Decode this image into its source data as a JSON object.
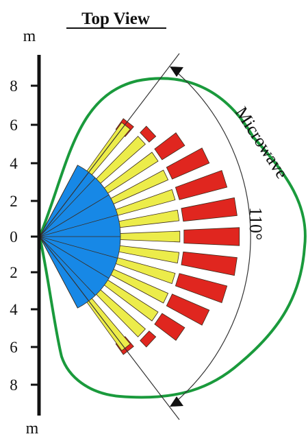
{
  "title": "Top View",
  "axis": {
    "unit_top": "m",
    "unit_bottom": "m",
    "ticks": [
      "8",
      "6",
      "4",
      "2",
      "0",
      "2",
      "4",
      "6",
      "8"
    ]
  },
  "labels": {
    "microwave": "Microwave",
    "angle": "110°"
  },
  "colors": {
    "axis": "#111111",
    "microwave_outline": "#1a9a3c",
    "pir_far_zone": "#e0261f",
    "pir_mid_zone": "#ecec4a",
    "pir_near_zone": "#1788e6",
    "zone_outline": "#3a2a1a",
    "angle_arc": "#333333"
  },
  "icons": {
    "angle_arrows": "arrowhead-icon"
  }
}
